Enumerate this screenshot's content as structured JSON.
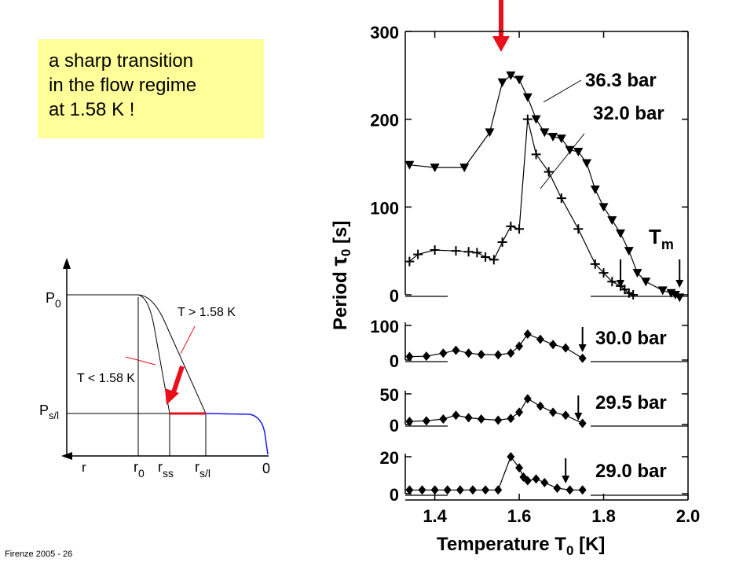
{
  "slide": {
    "callout_lines": [
      "a sharp transition",
      "in the flow regime",
      "at 1.58 K !"
    ],
    "footer": "Firenze  2005 - 26",
    "highlight_color": "#ffff99",
    "arrow_color": "#e8101c"
  },
  "schematic": {
    "y_labels": {
      "p0_main": "P",
      "p0_sub": "0",
      "psl_main": "P",
      "psl_sub": "s/l"
    },
    "x_labels": {
      "r": "r",
      "r0_main": "r",
      "r0_sub": "0",
      "rss_main": "r",
      "rss_sub": "ss",
      "rsl_main": "r",
      "rsl_sub": "s/l",
      "zero": "0"
    },
    "curve_labels": {
      "above": "T > 1.58 K",
      "below": "T < 1.58 K"
    },
    "curve_color": "#1a1aff",
    "segment_color": "#e8101c"
  },
  "chart_data": {
    "type": "scatter",
    "xlabel_main": "Temperature T",
    "xlabel_sub": "0",
    "xlabel_unit": " [K]",
    "ylabel_main": "Period ",
    "ylabel_sym": "τ",
    "ylabel_sub": "0",
    "ylabel_unit": " [s]",
    "x_ticks": [
      "1.4",
      "1.6",
      "1.8",
      "2.0"
    ],
    "xlim": [
      1.33,
      2.0
    ],
    "panels": [
      {
        "label": "36.3 bar + 32.0 bar",
        "ylim": [
          0,
          300
        ],
        "yticks": [
          "0",
          "100",
          "200",
          "300"
        ],
        "series": [
          {
            "name": "36.3 bar",
            "marker": "triangle-down",
            "x": [
              1.34,
              1.4,
              1.47,
              1.53,
              1.56,
              1.58,
              1.6,
              1.62,
              1.64,
              1.66,
              1.68,
              1.7,
              1.72,
              1.74,
              1.76,
              1.78,
              1.8,
              1.82,
              1.84,
              1.86,
              1.88,
              1.9,
              1.94,
              1.96,
              1.97,
              1.98
            ],
            "y": [
              148,
              145,
              145,
              185,
              242,
              250,
              245,
              225,
              200,
              185,
              180,
              178,
              165,
              163,
              150,
              120,
              100,
              85,
              70,
              50,
              25,
              15,
              5,
              2,
              0,
              -3
            ]
          },
          {
            "name": "32.0 bar",
            "marker": "plus",
            "x": [
              1.34,
              1.36,
              1.4,
              1.45,
              1.48,
              1.5,
              1.52,
              1.54,
              1.56,
              1.58,
              1.6,
              1.62,
              1.64,
              1.67,
              1.7,
              1.74,
              1.78,
              1.8,
              1.82,
              1.84,
              1.85,
              1.86,
              1.87
            ],
            "y": [
              38,
              46,
              51,
              50,
              49,
              48,
              43,
              40,
              60,
              78,
              75,
              200,
              160,
              140,
              110,
              75,
              35,
              25,
              15,
              10,
              6,
              2,
              0
            ]
          }
        ],
        "panel_labels": [
          "36.3 bar",
          "32.0 bar"
        ],
        "t_m_main": "T",
        "t_m_sub": "m",
        "marks_x": [
          1.84,
          1.98
        ]
      },
      {
        "label": "30.0 bar",
        "ylim": [
          0,
          100
        ],
        "yticks": [
          "0",
          "100"
        ],
        "series": [
          {
            "name": "30.0 bar",
            "marker": "diamond",
            "x": [
              1.34,
              1.38,
              1.42,
              1.45,
              1.48,
              1.51,
              1.55,
              1.58,
              1.6,
              1.62,
              1.65,
              1.68,
              1.71,
              1.75
            ],
            "y": [
              10,
              11,
              20,
              28,
              20,
              16,
              15,
              20,
              40,
              75,
              60,
              45,
              35,
              5
            ]
          }
        ],
        "marks_x": [
          1.75
        ]
      },
      {
        "label": "29.5 bar",
        "ylim": [
          0,
          50
        ],
        "yticks": [
          "0",
          "50"
        ],
        "series": [
          {
            "name": "29.5 bar",
            "marker": "diamond",
            "x": [
              1.34,
              1.38,
              1.42,
              1.45,
              1.48,
              1.51,
              1.55,
              1.58,
              1.6,
              1.62,
              1.65,
              1.68,
              1.71,
              1.75
            ],
            "y": [
              5,
              6,
              9,
              15,
              11,
              9,
              7,
              10,
              20,
              42,
              30,
              20,
              15,
              2
            ]
          }
        ],
        "marks_x": [
          1.74
        ]
      },
      {
        "label": "29.0 bar",
        "ylim": [
          0,
          20
        ],
        "yticks": [
          "0",
          "20"
        ],
        "series": [
          {
            "name": "29.0 bar",
            "marker": "diamond",
            "x": [
              1.34,
              1.37,
              1.4,
              1.43,
              1.46,
              1.49,
              1.52,
              1.55,
              1.58,
              1.6,
              1.61,
              1.62,
              1.64,
              1.66,
              1.69,
              1.72,
              1.75
            ],
            "y": [
              2,
              2,
              2,
              2,
              2,
              2,
              2,
              2,
              20,
              14,
              9,
              7,
              8,
              6,
              3,
              2,
              2
            ]
          }
        ],
        "marks_x": [
          1.71
        ]
      }
    ],
    "grid": false,
    "top_arrow_x": 1.58
  }
}
